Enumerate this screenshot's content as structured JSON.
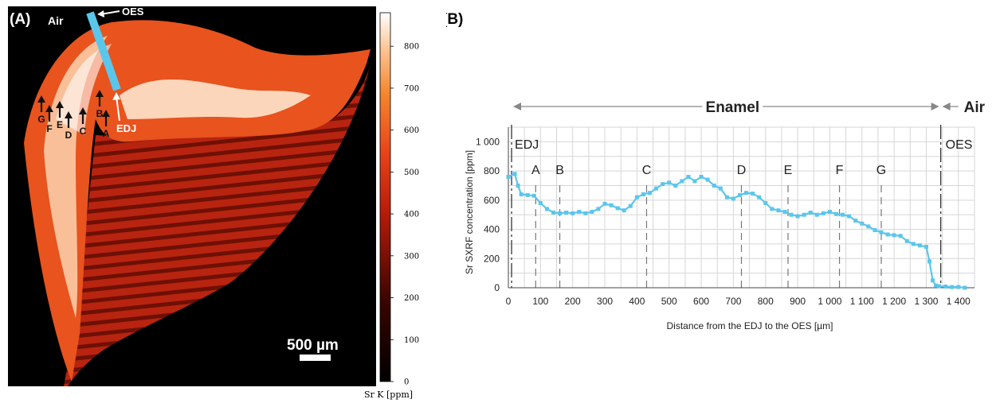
{
  "panel_a": {
    "panel_label": "(A)",
    "air_label": "Air",
    "oes_label": "OES",
    "edj_label": "EDJ",
    "point_labels": [
      "A",
      "B",
      "C",
      "D",
      "E",
      "F",
      "G"
    ],
    "scale_bar_label": "500 µm",
    "colorbar_label": "Sr K  [ppm]",
    "colorbar_ticks": [
      "0",
      "100",
      "200",
      "300",
      "400",
      "500",
      "600",
      "700",
      "800"
    ],
    "transect_color": "#5bc6ec"
  },
  "chart_data": {
    "type": "line",
    "panel_label": "(B)",
    "xlabel": "Distance from the EDJ to the OES [µm]",
    "ylabel": "Sr SXRF concentration [ppm]",
    "xlim": [
      0,
      1450
    ],
    "ylim": [
      0,
      1100
    ],
    "x_ticks": [
      0,
      100,
      200,
      300,
      400,
      500,
      600,
      700,
      800,
      900,
      1000,
      1100,
      1200,
      1300,
      1400
    ],
    "x_tick_labels": [
      "0",
      "100",
      "200",
      "300",
      "400",
      "500",
      "600",
      "700",
      "800",
      "900",
      "1 000",
      "1 100",
      "1 200",
      "1 300",
      "1 400"
    ],
    "y_ticks": [
      0,
      200,
      400,
      600,
      800,
      1000
    ],
    "y_tick_labels": [
      "0",
      "200",
      "400",
      "600",
      "800",
      "1 000"
    ],
    "grid": true,
    "series_color": "#5bc6ec",
    "enamel_label": "Enamel",
    "air_label": "Air",
    "edj_label": "EDJ",
    "oes_label": "OES",
    "edj_x": 10,
    "oes_x": 1345,
    "markers": [
      {
        "label": "A",
        "x": 85
      },
      {
        "label": "B",
        "x": 160
      },
      {
        "label": "C",
        "x": 430
      },
      {
        "label": "D",
        "x": 725
      },
      {
        "label": "E",
        "x": 870
      },
      {
        "label": "F",
        "x": 1030
      },
      {
        "label": "G",
        "x": 1160
      }
    ],
    "x": [
      0,
      20,
      30,
      40,
      60,
      80,
      100,
      120,
      140,
      160,
      180,
      200,
      220,
      240,
      260,
      280,
      300,
      320,
      340,
      360,
      380,
      400,
      420,
      440,
      460,
      480,
      500,
      520,
      540,
      560,
      580,
      600,
      620,
      640,
      660,
      680,
      700,
      720,
      740,
      760,
      780,
      800,
      820,
      840,
      860,
      880,
      900,
      920,
      940,
      960,
      980,
      1000,
      1020,
      1040,
      1060,
      1080,
      1100,
      1120,
      1140,
      1160,
      1180,
      1200,
      1220,
      1240,
      1260,
      1280,
      1300,
      1310,
      1320,
      1330,
      1340,
      1360,
      1380,
      1400,
      1420
    ],
    "y": [
      760,
      780,
      700,
      640,
      635,
      630,
      580,
      540,
      515,
      510,
      515,
      510,
      520,
      510,
      520,
      540,
      575,
      565,
      545,
      530,
      560,
      620,
      640,
      650,
      680,
      710,
      720,
      700,
      730,
      760,
      730,
      760,
      740,
      700,
      680,
      620,
      610,
      635,
      650,
      645,
      620,
      580,
      540,
      530,
      520,
      500,
      490,
      500,
      515,
      500,
      510,
      520,
      505,
      500,
      490,
      460,
      440,
      420,
      395,
      380,
      365,
      360,
      355,
      320,
      300,
      290,
      280,
      180,
      50,
      15,
      10,
      8,
      5,
      5,
      0
    ]
  }
}
